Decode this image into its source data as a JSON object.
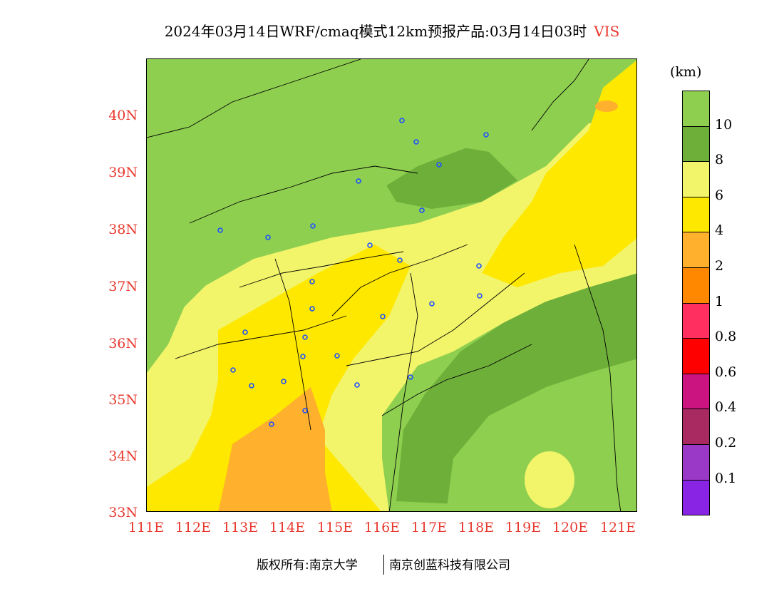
{
  "title": {
    "main": "2024年03月14日WRF/cmaq模式12km预报产品:03月14日03时",
    "variable": "VIS"
  },
  "colors": {
    "axis_text": "#e8392f",
    "city_marker": "#1e50ff"
  },
  "map": {
    "lat_labels": [
      "40N",
      "39N",
      "38N",
      "37N",
      "36N",
      "35N",
      "34N",
      "33N"
    ],
    "lon_labels": [
      "111E",
      "112E",
      "113E",
      "114E",
      "115E",
      "116E",
      "117E",
      "118E",
      "119E",
      "120E",
      "121E"
    ],
    "lat_range": [
      33,
      41
    ],
    "lon_range": [
      111,
      121.4
    ]
  },
  "colorbar": {
    "unit": "(km)",
    "bins": [
      {
        "color": "#8ecf50",
        "label": "10"
      },
      {
        "color": "#6eaf3a",
        "label": "8"
      },
      {
        "color": "#f2f46a",
        "label": "6"
      },
      {
        "color": "#ffe800",
        "label": "4"
      },
      {
        "color": "#ffb02c",
        "label": "2"
      },
      {
        "color": "#ff8800",
        "label": "1"
      },
      {
        "color": "#ff3060",
        "label": "0.8"
      },
      {
        "color": "#ff0000",
        "label": "0.6"
      },
      {
        "color": "#cc1480",
        "label": "0.4"
      },
      {
        "color": "#a82a60",
        "label": "0.2"
      },
      {
        "color": "#9a38c8",
        "label": "0.1"
      },
      {
        "color": "#8a24e4",
        "label": ""
      }
    ]
  },
  "footer": {
    "left": "版权所有:南京大学",
    "right": "南京创蓝科技有限公司"
  }
}
